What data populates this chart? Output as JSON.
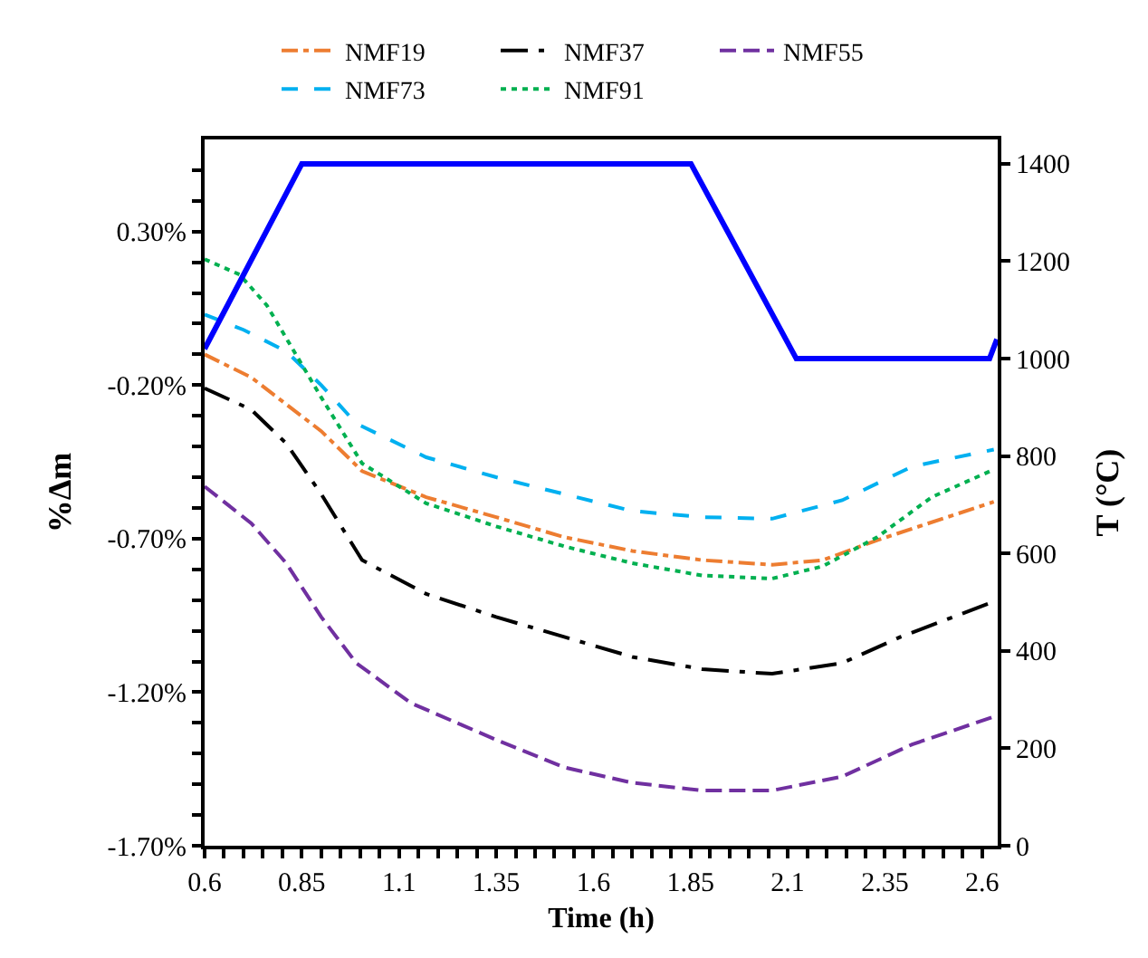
{
  "chart_data": {
    "type": "line",
    "xlabel": "Time (h)",
    "ylabel": "%Δm",
    "y2label": "T (°C)",
    "xlim": [
      0.6,
      2.64
    ],
    "ylim": [
      -1.7,
      0.6
    ],
    "y2lim": [
      0,
      1450
    ],
    "xticks": [
      0.6,
      {
        "value": 0.65,
        "label": null
      },
      {
        "value": 0.7,
        "label": null
      },
      {
        "value": 0.75,
        "label": null
      },
      {
        "value": 0.8,
        "label": null
      },
      0.85,
      {
        "value": 0.9,
        "label": null
      },
      {
        "value": 0.95,
        "label": null
      },
      {
        "value": 1.0,
        "label": null
      },
      {
        "value": 1.05,
        "label": null
      },
      1.1,
      {
        "value": 1.15,
        "label": null
      },
      {
        "value": 1.2,
        "label": null
      },
      {
        "value": 1.25,
        "label": null
      },
      {
        "value": 1.3,
        "label": null
      },
      1.35,
      {
        "value": 1.4,
        "label": null
      },
      {
        "value": 1.45,
        "label": null
      },
      {
        "value": 1.5,
        "label": null
      },
      {
        "value": 1.55,
        "label": null
      },
      1.6,
      {
        "value": 1.65,
        "label": null
      },
      {
        "value": 1.7,
        "label": null
      },
      {
        "value": 1.75,
        "label": null
      },
      {
        "value": 1.8,
        "label": null
      },
      1.85,
      {
        "value": 1.9,
        "label": null
      },
      {
        "value": 1.95,
        "label": null
      },
      {
        "value": 2.0,
        "label": null
      },
      {
        "value": 2.05,
        "label": null
      },
      2.1,
      {
        "value": 2.15,
        "label": null
      },
      {
        "value": 2.2,
        "label": null
      },
      {
        "value": 2.25,
        "label": null
      },
      {
        "value": 2.3,
        "label": null
      },
      2.35,
      {
        "value": 2.4,
        "label": null
      },
      {
        "value": 2.45,
        "label": null
      },
      {
        "value": 2.5,
        "label": null
      },
      {
        "value": 2.55,
        "label": null
      },
      2.6
    ],
    "yticks": [
      {
        "value": -1.7,
        "label": "-1.70%"
      },
      {
        "value": -1.6,
        "label": null
      },
      {
        "value": -1.5,
        "label": null
      },
      {
        "value": -1.4,
        "label": null
      },
      {
        "value": -1.3,
        "label": null
      },
      {
        "value": -1.2,
        "label": "-1.20%"
      },
      {
        "value": -1.1,
        "label": null
      },
      {
        "value": -1.0,
        "label": null
      },
      {
        "value": -0.9,
        "label": null
      },
      {
        "value": -0.8,
        "label": null
      },
      {
        "value": -0.7,
        "label": "-0.70%"
      },
      {
        "value": -0.6,
        "label": null
      },
      {
        "value": -0.5,
        "label": null
      },
      {
        "value": -0.4,
        "label": null
      },
      {
        "value": -0.3,
        "label": null
      },
      {
        "value": -0.2,
        "label": "-0.20%"
      },
      {
        "value": -0.1,
        "label": null
      },
      {
        "value": 0.0,
        "label": null
      },
      {
        "value": 0.1,
        "label": null
      },
      {
        "value": 0.2,
        "label": null
      },
      {
        "value": 0.3,
        "label": "0.30%"
      },
      {
        "value": 0.4,
        "label": null
      },
      {
        "value": 0.5,
        "label": null
      }
    ],
    "y2ticks": [
      0,
      200,
      400,
      600,
      800,
      1000,
      1200,
      1400
    ],
    "legend": "top",
    "marker": "none",
    "series": [
      {
        "name": "NMF19",
        "color": "#ed7d31",
        "line_style": "dashdot",
        "x": [
          0.6,
          0.72,
          0.9,
          1.005,
          1.17,
          1.35,
          1.525,
          1.7,
          1.88,
          2.06,
          2.19,
          2.33,
          2.63
        ],
        "values": [
          -0.1,
          -0.175,
          -0.35,
          -0.48,
          -0.565,
          -0.63,
          -0.695,
          -0.74,
          -0.77,
          -0.785,
          -0.77,
          -0.705,
          -0.58
        ]
      },
      {
        "name": "NMF37",
        "color": "#000000",
        "line_style": "longdashdot",
        "x": [
          0.6,
          0.72,
          0.81,
          0.9,
          1.005,
          1.17,
          1.35,
          1.525,
          1.7,
          1.88,
          2.06,
          2.24,
          2.39,
          2.63
        ],
        "values": [
          -0.21,
          -0.28,
          -0.39,
          -0.555,
          -0.77,
          -0.88,
          -0.955,
          -1.02,
          -1.085,
          -1.125,
          -1.14,
          -1.105,
          -1.02,
          -0.905
        ]
      },
      {
        "name": "NMF55",
        "color": "#7030a0",
        "line_style": "longdash",
        "x": [
          0.6,
          0.72,
          0.81,
          0.9,
          0.99,
          1.13,
          1.35,
          1.525,
          1.7,
          1.88,
          2.06,
          2.24,
          2.42,
          2.63
        ],
        "values": [
          -0.53,
          -0.65,
          -0.78,
          -0.955,
          -1.105,
          -1.235,
          -1.355,
          -1.445,
          -1.495,
          -1.52,
          -1.52,
          -1.475,
          -1.37,
          -1.28
        ]
      },
      {
        "name": "NMF73",
        "color": "#00b0f0",
        "line_style": "dashed",
        "x": [
          0.6,
          0.7,
          0.81,
          0.9,
          0.99,
          1.17,
          1.35,
          1.525,
          1.7,
          1.88,
          2.06,
          2.24,
          2.42,
          2.63
        ],
        "values": [
          0.03,
          -0.02,
          -0.09,
          -0.2,
          -0.325,
          -0.435,
          -0.5,
          -0.555,
          -0.61,
          -0.63,
          -0.635,
          -0.575,
          -0.465,
          -0.41
        ]
      },
      {
        "name": "NMF91",
        "color": "#00b050",
        "line_style": "dotted",
        "x": [
          0.6,
          0.69,
          0.76,
          0.83,
          0.9,
          1.005,
          1.17,
          1.35,
          1.525,
          1.7,
          1.88,
          2.06,
          2.19,
          2.33,
          2.47,
          2.63
        ],
        "values": [
          0.21,
          0.16,
          0.06,
          -0.09,
          -0.24,
          -0.455,
          -0.585,
          -0.66,
          -0.725,
          -0.78,
          -0.82,
          -0.83,
          -0.79,
          -0.695,
          -0.565,
          -0.475
        ]
      },
      {
        "color": "#0000ff",
        "line_style": "solid",
        "axis": "y2",
        "x": [
          0.6,
          0.85,
          1.851,
          2.122,
          2.619,
          2.638
        ],
        "values": [
          1020,
          1400,
          1400,
          1000,
          1000,
          1040
        ]
      }
    ]
  }
}
